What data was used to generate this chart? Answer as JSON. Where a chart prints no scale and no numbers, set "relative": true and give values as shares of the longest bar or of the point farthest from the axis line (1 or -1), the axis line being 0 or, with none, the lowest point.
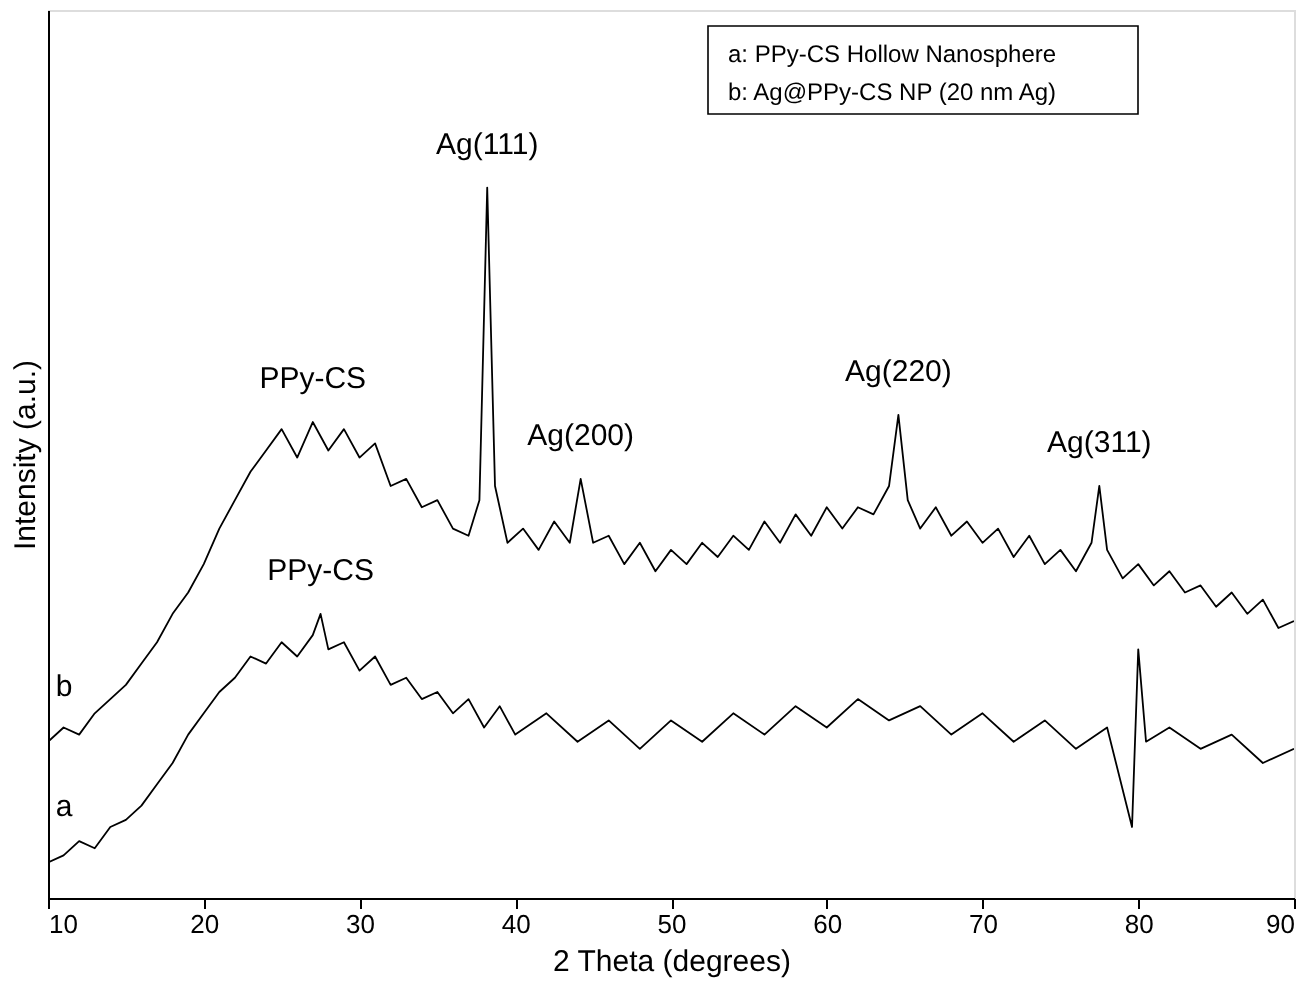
{
  "chart_data": {
    "type": "line",
    "relative": true,
    "xlabel": "2 Theta (degrees)",
    "ylabel": "Intensity (a.u.)",
    "xlim": [
      10,
      90
    ],
    "xticks": [
      10,
      20,
      30,
      40,
      50,
      60,
      70,
      80,
      90
    ],
    "tick_labels": "x",
    "series": [
      {
        "name": "b",
        "color": "#000000",
        "x": [
          10,
          11,
          12,
          13,
          14,
          15,
          16,
          17,
          18,
          19,
          20,
          21,
          22,
          23,
          24,
          25,
          26,
          27,
          28,
          29,
          30,
          31,
          32,
          33,
          34,
          35,
          36,
          37,
          37.7,
          38.2,
          38.7,
          39.5,
          40.5,
          41.5,
          42.5,
          43.5,
          44.2,
          45,
          46,
          47,
          48,
          49,
          50,
          51,
          52,
          53,
          54,
          55,
          56,
          57,
          58,
          59,
          60,
          61,
          62,
          63,
          64,
          64.6,
          65.2,
          66,
          67,
          68,
          69,
          70,
          71,
          72,
          73,
          74,
          75,
          76,
          77,
          77.5,
          78,
          79,
          80,
          81,
          82,
          83,
          84,
          85,
          86,
          87,
          88,
          89,
          90
        ],
        "values": [
          0.22,
          0.24,
          0.23,
          0.26,
          0.28,
          0.3,
          0.33,
          0.36,
          0.4,
          0.43,
          0.47,
          0.52,
          0.56,
          0.6,
          0.63,
          0.66,
          0.62,
          0.67,
          0.63,
          0.66,
          0.62,
          0.64,
          0.58,
          0.59,
          0.55,
          0.56,
          0.52,
          0.51,
          0.56,
          1.0,
          0.58,
          0.5,
          0.52,
          0.49,
          0.53,
          0.5,
          0.59,
          0.5,
          0.51,
          0.47,
          0.5,
          0.46,
          0.49,
          0.47,
          0.5,
          0.48,
          0.51,
          0.49,
          0.53,
          0.5,
          0.54,
          0.51,
          0.55,
          0.52,
          0.55,
          0.54,
          0.58,
          0.68,
          0.56,
          0.52,
          0.55,
          0.51,
          0.53,
          0.5,
          0.52,
          0.48,
          0.51,
          0.47,
          0.49,
          0.46,
          0.5,
          0.58,
          0.49,
          0.45,
          0.47,
          0.44,
          0.46,
          0.43,
          0.44,
          0.41,
          0.43,
          0.4,
          0.42,
          0.38,
          0.39
        ]
      },
      {
        "name": "a",
        "color": "#000000",
        "x": [
          10,
          11,
          12,
          13,
          14,
          15,
          16,
          17,
          18,
          19,
          20,
          21,
          22,
          23,
          24,
          25,
          26,
          27,
          27.5,
          28,
          29,
          30,
          31,
          32,
          33,
          34,
          35,
          36,
          37,
          38,
          39,
          40,
          42,
          44,
          46,
          48,
          50,
          52,
          54,
          56,
          58,
          60,
          62,
          64,
          66,
          68,
          70,
          72,
          74,
          76,
          78,
          79.6,
          80,
          80.5,
          82,
          84,
          86,
          88,
          90
        ],
        "values": [
          0.05,
          0.06,
          0.08,
          0.07,
          0.1,
          0.11,
          0.13,
          0.16,
          0.19,
          0.23,
          0.26,
          0.29,
          0.31,
          0.34,
          0.33,
          0.36,
          0.34,
          0.37,
          0.4,
          0.35,
          0.36,
          0.32,
          0.34,
          0.3,
          0.31,
          0.28,
          0.29,
          0.26,
          0.28,
          0.24,
          0.27,
          0.23,
          0.26,
          0.22,
          0.25,
          0.21,
          0.25,
          0.22,
          0.26,
          0.23,
          0.27,
          0.24,
          0.28,
          0.25,
          0.27,
          0.23,
          0.26,
          0.22,
          0.25,
          0.21,
          0.24,
          0.1,
          0.35,
          0.22,
          0.24,
          0.21,
          0.23,
          0.19,
          0.21
        ]
      }
    ],
    "annotations": [
      {
        "text": "Ag(111)",
        "x": 38.2,
        "y": 1.0
      },
      {
        "text": "Ag(200)",
        "x": 44.2,
        "y": 0.59
      },
      {
        "text": "Ag(220)",
        "x": 64.6,
        "y": 0.68
      },
      {
        "text": "Ag(311)",
        "x": 77.5,
        "y": 0.58
      },
      {
        "text": "PPy-CS",
        "x": 27,
        "y": 0.67
      },
      {
        "text": "PPy-CS",
        "x": 27.5,
        "y": 0.4
      },
      "a: PPy-CS Hollow Nanosphere",
      "b: Ag@PPy-CS NP (20 nm Ag)"
    ]
  }
}
